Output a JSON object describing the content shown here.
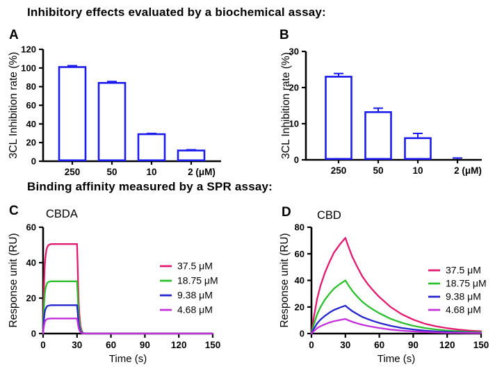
{
  "page": {
    "heading_biochemical": "Inhibitory effects evaluated by a biochemical assay:",
    "heading_spr": "Binding affinity measured by a SPR assay:"
  },
  "colors": {
    "axis": "#000000",
    "bar_outline": "#1b1bee",
    "bar_fill": "#ffffff",
    "series_pink": "#e3186f",
    "series_green": "#2bbf2b",
    "series_blue": "#2424cf",
    "series_magenta": "#c32fd9"
  },
  "chart_data": [
    {
      "id": "A",
      "type": "bar",
      "panel_label": "A",
      "ylabel": "3CL Inhibition rate (%)",
      "categories": [
        "250",
        "50",
        "10",
        "2 (μM)"
      ],
      "values": [
        101,
        84,
        29,
        11.5
      ],
      "errors": [
        1.5,
        1.5,
        0.8,
        0.8
      ],
      "ylim": [
        0,
        120
      ],
      "yticks": [
        0,
        20,
        40,
        60,
        80,
        100,
        120
      ],
      "bar_fill": "#ffffff",
      "bar_outline": "#1b1bee",
      "grid": false
    },
    {
      "id": "B",
      "type": "bar",
      "panel_label": "B",
      "ylabel": "3CL Inhibition rate (%)",
      "categories": [
        "250",
        "50",
        "10",
        "2 (μM)"
      ],
      "values": [
        23,
        13.2,
        6,
        0.2
      ],
      "errors": [
        0.9,
        1.1,
        1.3,
        0.3
      ],
      "ylim": [
        0,
        30
      ],
      "yticks": [
        0,
        10,
        20,
        30
      ],
      "bar_fill": "#ffffff",
      "bar_outline": "#1b1bee",
      "grid": false
    },
    {
      "id": "C",
      "type": "line",
      "panel_label": "C",
      "title": "CBDA",
      "xlabel": "Time (s)",
      "ylabel": "Response unit (RU)",
      "xlim": [
        0,
        150
      ],
      "xticks": [
        0,
        30,
        60,
        90,
        120,
        150
      ],
      "ylim": [
        0,
        60
      ],
      "yticks": [
        0,
        20,
        40,
        60
      ],
      "legend_position": "right-inside",
      "grid": false,
      "series": [
        {
          "name": "37.5 μM",
          "color": "#e3186f",
          "plateau_RU": 50.5,
          "points": [
            [
              0,
              0
            ],
            [
              0.5,
              17.7
            ],
            [
              1,
              30.3
            ],
            [
              1.5,
              38.4
            ],
            [
              2,
              42.9
            ],
            [
              3,
              47.5
            ],
            [
              4,
              49.2
            ],
            [
              5,
              50
            ],
            [
              7,
              50.5
            ],
            [
              28,
              50.5
            ],
            [
              30,
              50.5
            ],
            [
              30.5,
              40.4
            ],
            [
              31,
              27.8
            ],
            [
              31.5,
              17.7
            ],
            [
              32,
              11.1
            ],
            [
              33,
              4.5
            ],
            [
              34,
              1.8
            ],
            [
              35,
              0.6
            ],
            [
              36,
              0.2
            ],
            [
              40,
              0
            ],
            [
              150,
              0
            ]
          ]
        },
        {
          "name": "18.75 μM",
          "color": "#2bbf2b",
          "plateau_RU": 29.5,
          "points": [
            [
              0,
              0
            ],
            [
              0.5,
              10.3
            ],
            [
              1,
              17.7
            ],
            [
              1.5,
              22.4
            ],
            [
              2,
              25.1
            ],
            [
              3,
              27.7
            ],
            [
              4,
              28.8
            ],
            [
              5,
              29.2
            ],
            [
              7,
              29.5
            ],
            [
              28,
              29.5
            ],
            [
              30,
              29.5
            ],
            [
              30.5,
              23.6
            ],
            [
              31,
              16.2
            ],
            [
              31.5,
              10.3
            ],
            [
              32,
              6.5
            ],
            [
              33,
              2.7
            ],
            [
              34,
              1
            ],
            [
              35,
              0.4
            ],
            [
              36,
              0.1
            ],
            [
              40,
              0
            ],
            [
              150,
              0
            ]
          ]
        },
        {
          "name": "9.38 μM",
          "color": "#2424cf",
          "plateau_RU": 16,
          "points": [
            [
              0,
              0
            ],
            [
              0.5,
              5.6
            ],
            [
              1,
              9.6
            ],
            [
              1.5,
              12.2
            ],
            [
              2,
              13.6
            ],
            [
              3,
              15
            ],
            [
              4,
              15.6
            ],
            [
              5,
              15.8
            ],
            [
              7,
              16
            ],
            [
              28,
              16
            ],
            [
              30,
              16
            ],
            [
              30.5,
              12.8
            ],
            [
              31,
              8.8
            ],
            [
              31.5,
              5.6
            ],
            [
              32,
              3.5
            ],
            [
              33,
              1.4
            ],
            [
              34,
              0.6
            ],
            [
              35,
              0.2
            ],
            [
              36,
              0.1
            ],
            [
              40,
              0
            ],
            [
              150,
              0
            ]
          ]
        },
        {
          "name": "4.68 μM",
          "color": "#c32fd9",
          "plateau_RU": 8.5,
          "points": [
            [
              0,
              0
            ],
            [
              0.5,
              3
            ],
            [
              1,
              5.1
            ],
            [
              1.5,
              6.5
            ],
            [
              2,
              7.2
            ],
            [
              3,
              8
            ],
            [
              4,
              8.3
            ],
            [
              5,
              8.4
            ],
            [
              7,
              8.5
            ],
            [
              28,
              8.5
            ],
            [
              30,
              8.5
            ],
            [
              30.5,
              6.8
            ],
            [
              31,
              4.7
            ],
            [
              31.5,
              3
            ],
            [
              32,
              1.9
            ],
            [
              33,
              0.8
            ],
            [
              34,
              0.3
            ],
            [
              35,
              0.1
            ],
            [
              36,
              0
            ],
            [
              40,
              0
            ],
            [
              150,
              0
            ]
          ]
        }
      ]
    },
    {
      "id": "D",
      "type": "line",
      "panel_label": "D",
      "title": "CBD",
      "xlabel": "Time (s)",
      "ylabel": "Response unit (RU)",
      "xlim": [
        0,
        150
      ],
      "xticks": [
        0,
        30,
        60,
        90,
        120,
        150
      ],
      "ylim": [
        0,
        80
      ],
      "yticks": [
        0,
        20,
        40,
        60,
        80
      ],
      "legend_position": "right-inside",
      "grid": false,
      "series": [
        {
          "name": "37.5 μM",
          "color": "#e3186f",
          "peak_RU": 72,
          "points": [
            [
              0,
              0
            ],
            [
              2,
              12
            ],
            [
              5,
              26
            ],
            [
              8,
              36
            ],
            [
              12,
              46
            ],
            [
              16,
              54
            ],
            [
              20,
              61
            ],
            [
              25,
              67
            ],
            [
              30,
              72
            ],
            [
              32,
              67
            ],
            [
              36,
              58
            ],
            [
              40,
              51
            ],
            [
              45,
              43
            ],
            [
              50,
              37
            ],
            [
              55,
              32
            ],
            [
              60,
              27.5
            ],
            [
              70,
              20
            ],
            [
              80,
              14.5
            ],
            [
              90,
              10.5
            ],
            [
              100,
              7.5
            ],
            [
              110,
              5.5
            ],
            [
              120,
              4
            ],
            [
              130,
              3
            ],
            [
              140,
              2.2
            ],
            [
              150,
              1.8
            ]
          ]
        },
        {
          "name": "18.75 μM",
          "color": "#2bbf2b",
          "peak_RU": 40,
          "points": [
            [
              0,
              0
            ],
            [
              2,
              6.7
            ],
            [
              5,
              14.4
            ],
            [
              8,
              20
            ],
            [
              12,
              25.6
            ],
            [
              16,
              30
            ],
            [
              20,
              33.9
            ],
            [
              25,
              37.2
            ],
            [
              30,
              40
            ],
            [
              32,
              37.2
            ],
            [
              36,
              32.2
            ],
            [
              40,
              28.3
            ],
            [
              45,
              23.9
            ],
            [
              50,
              20.6
            ],
            [
              55,
              17.8
            ],
            [
              60,
              15.3
            ],
            [
              70,
              11.1
            ],
            [
              80,
              8.1
            ],
            [
              90,
              5.8
            ],
            [
              100,
              4.2
            ],
            [
              110,
              3.1
            ],
            [
              120,
              2.2
            ],
            [
              130,
              1.7
            ],
            [
              140,
              1.2
            ],
            [
              150,
              1
            ]
          ]
        },
        {
          "name": "9.38 μM",
          "color": "#2424cf",
          "peak_RU": 21,
          "points": [
            [
              0,
              0
            ],
            [
              2,
              3.5
            ],
            [
              5,
              7.6
            ],
            [
              8,
              10.5
            ],
            [
              12,
              13.4
            ],
            [
              16,
              15.8
            ],
            [
              20,
              17.8
            ],
            [
              25,
              19.5
            ],
            [
              30,
              21
            ],
            [
              32,
              19.5
            ],
            [
              36,
              16.9
            ],
            [
              40,
              14.9
            ],
            [
              45,
              12.5
            ],
            [
              50,
              10.8
            ],
            [
              55,
              9.3
            ],
            [
              60,
              8
            ],
            [
              70,
              5.8
            ],
            [
              80,
              4.2
            ],
            [
              90,
              3.1
            ],
            [
              100,
              2.2
            ],
            [
              110,
              1.6
            ],
            [
              120,
              1.2
            ],
            [
              130,
              0.9
            ],
            [
              140,
              0.7
            ],
            [
              150,
              0.5
            ]
          ]
        },
        {
          "name": "4.68 μM",
          "color": "#c32fd9",
          "peak_RU": 11,
          "points": [
            [
              0,
              0
            ],
            [
              2,
              1.8
            ],
            [
              5,
              4
            ],
            [
              8,
              5.5
            ],
            [
              12,
              7
            ],
            [
              16,
              8.3
            ],
            [
              20,
              9.3
            ],
            [
              25,
              10.2
            ],
            [
              30,
              11
            ],
            [
              32,
              10.2
            ],
            [
              36,
              8.9
            ],
            [
              40,
              7.8
            ],
            [
              45,
              6.6
            ],
            [
              50,
              5.7
            ],
            [
              55,
              4.9
            ],
            [
              60,
              4.2
            ],
            [
              70,
              3
            ],
            [
              80,
              2.2
            ],
            [
              90,
              1.6
            ],
            [
              100,
              1.2
            ],
            [
              110,
              0.9
            ],
            [
              120,
              0.6
            ],
            [
              130,
              0.5
            ],
            [
              140,
              0.4
            ],
            [
              150,
              0.3
            ]
          ]
        }
      ]
    }
  ]
}
